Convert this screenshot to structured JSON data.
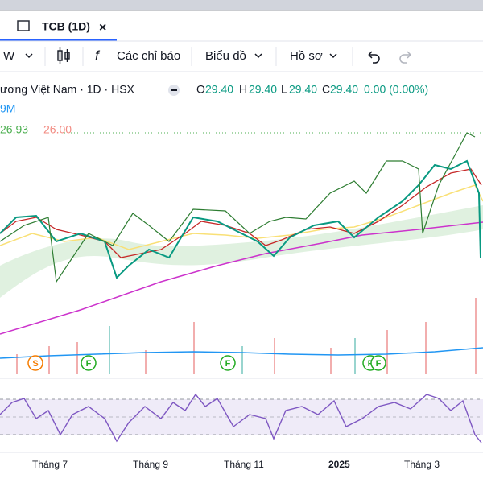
{
  "tab": {
    "title": "TCB (1D)",
    "close": "×"
  },
  "toolbar": {
    "interval": "W",
    "indicators": "Các chỉ báo",
    "chart_type": "Biểu đồ",
    "profile": "Hồ sơ"
  },
  "legend": {
    "symbol": "ương Việt Nam · 1D · HSX",
    "o_label": "O",
    "o": "29.40",
    "h_label": "H",
    "h": "29.40",
    "l_label": "L",
    "l": "29.40",
    "c_label": "C",
    "c": "29.40",
    "change": "0.00 (0.00%)",
    "volume": "9M",
    "ind1": "26.93",
    "ind2": "26.00"
  },
  "events": [
    "S",
    "F",
    "F",
    "F",
    "F"
  ],
  "x_labels": [
    "Tháng 7",
    "Tháng 9",
    "Tháng 11",
    "2025",
    "Tháng 3"
  ]
}
